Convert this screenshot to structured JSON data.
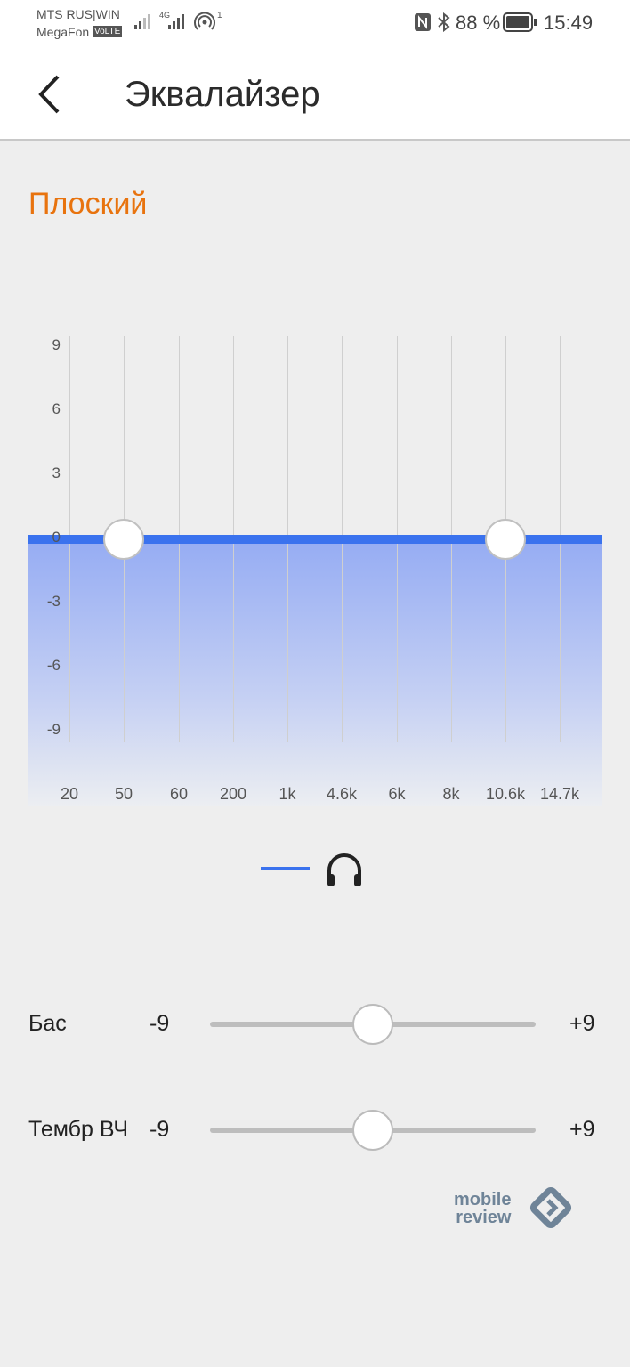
{
  "status_bar": {
    "carrier1": "MTS RUS|WIN",
    "carrier2": "MegaFon",
    "volte": "VoLTE",
    "network": "4G",
    "hotspot_count": "1",
    "battery": "88 %",
    "time": "15:49",
    "icons": [
      "signal-icon",
      "nfc-icon",
      "bluetooth-icon",
      "battery-icon",
      "hotspot-icon"
    ]
  },
  "header": {
    "title": "Эквалайзер",
    "back_icon": "chevron-left-icon"
  },
  "preset": {
    "name": "Плоский",
    "color": "#e8730e"
  },
  "chart_data": {
    "type": "line",
    "categories": [
      "20",
      "50",
      "60",
      "200",
      "1k",
      "4.6k",
      "6k",
      "8k",
      "10.6k",
      "14.7k"
    ],
    "values": [
      0,
      0,
      0,
      0,
      0,
      0,
      0,
      0,
      0,
      0
    ],
    "yticks": [
      "9",
      "6",
      "3",
      "0",
      "-3",
      "-6",
      "-9"
    ],
    "ylim": [
      -9,
      9
    ],
    "grid": true,
    "color": "#3a72ee",
    "handles_at": [
      "50",
      "10.6k"
    ]
  },
  "legend": {
    "icon": "headphones-icon"
  },
  "sliders": [
    {
      "label": "Бас",
      "min": "-9",
      "max": "+9",
      "value": 0
    },
    {
      "label": "Тембр ВЧ",
      "min": "-9",
      "max": "+9",
      "value": 0
    }
  ],
  "watermark": {
    "line1": "mobile",
    "line2": "review"
  }
}
